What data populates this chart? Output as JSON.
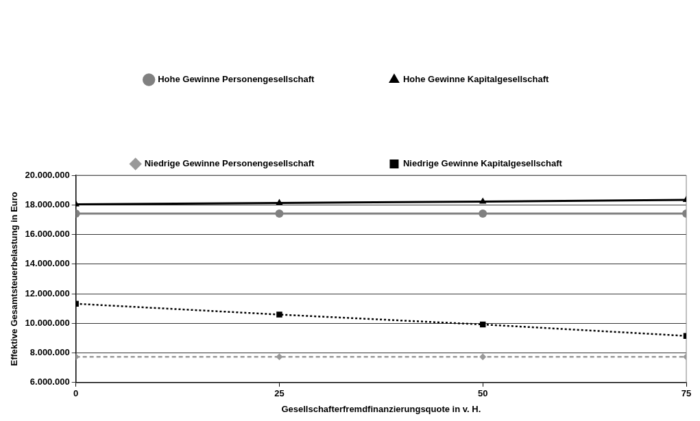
{
  "chart_data": {
    "type": "line",
    "xlabel": "Gesellschafterfremdfinanzierungsquote in v. H.",
    "ylabel": "Effektive Gesamtsteuerbelastung in Euro",
    "x": [
      0,
      25,
      50,
      75
    ],
    "xlim": [
      0,
      75
    ],
    "xticks": [
      0,
      25,
      50,
      75
    ],
    "ylim": [
      6000000,
      20000000
    ],
    "yticks": [
      {
        "value": 6000000,
        "label": "6.000.000"
      },
      {
        "value": 8000000,
        "label": "8.000.000"
      },
      {
        "value": 10000000,
        "label": "10.000.000"
      },
      {
        "value": 12000000,
        "label": "12.000.000"
      },
      {
        "value": 14000000,
        "label": "14.000.000"
      },
      {
        "value": 16000000,
        "label": "16.000.000"
      },
      {
        "value": 18000000,
        "label": "18.000.000"
      },
      {
        "value": 20000000,
        "label": "20.000.000"
      }
    ],
    "grid": "y",
    "legend": "top",
    "series": [
      {
        "name": "Hohe Gewinne Personengesellschaft",
        "color": "#808080",
        "marker": "circle",
        "line_style": "solid",
        "values": [
          17410000,
          17410000,
          17410000,
          17410000
        ]
      },
      {
        "name": "Hohe Gewinne Kapitalgesellschaft",
        "color": "#000000",
        "marker": "triangle",
        "line_style": "solid",
        "values": [
          18040000,
          18130000,
          18220000,
          18330000
        ]
      },
      {
        "name": "Niedrige Gewinne Personengesellschaft",
        "color": "#999999",
        "marker": "diamond",
        "line_style": "dashed",
        "values": [
          7740000,
          7740000,
          7740000,
          7740000
        ]
      },
      {
        "name": "Niedrige Gewinne Kapitalgesellschaft",
        "color": "#000000",
        "marker": "square",
        "line_style": "dotted",
        "values": [
          11320000,
          10590000,
          9920000,
          9150000
        ]
      }
    ]
  }
}
